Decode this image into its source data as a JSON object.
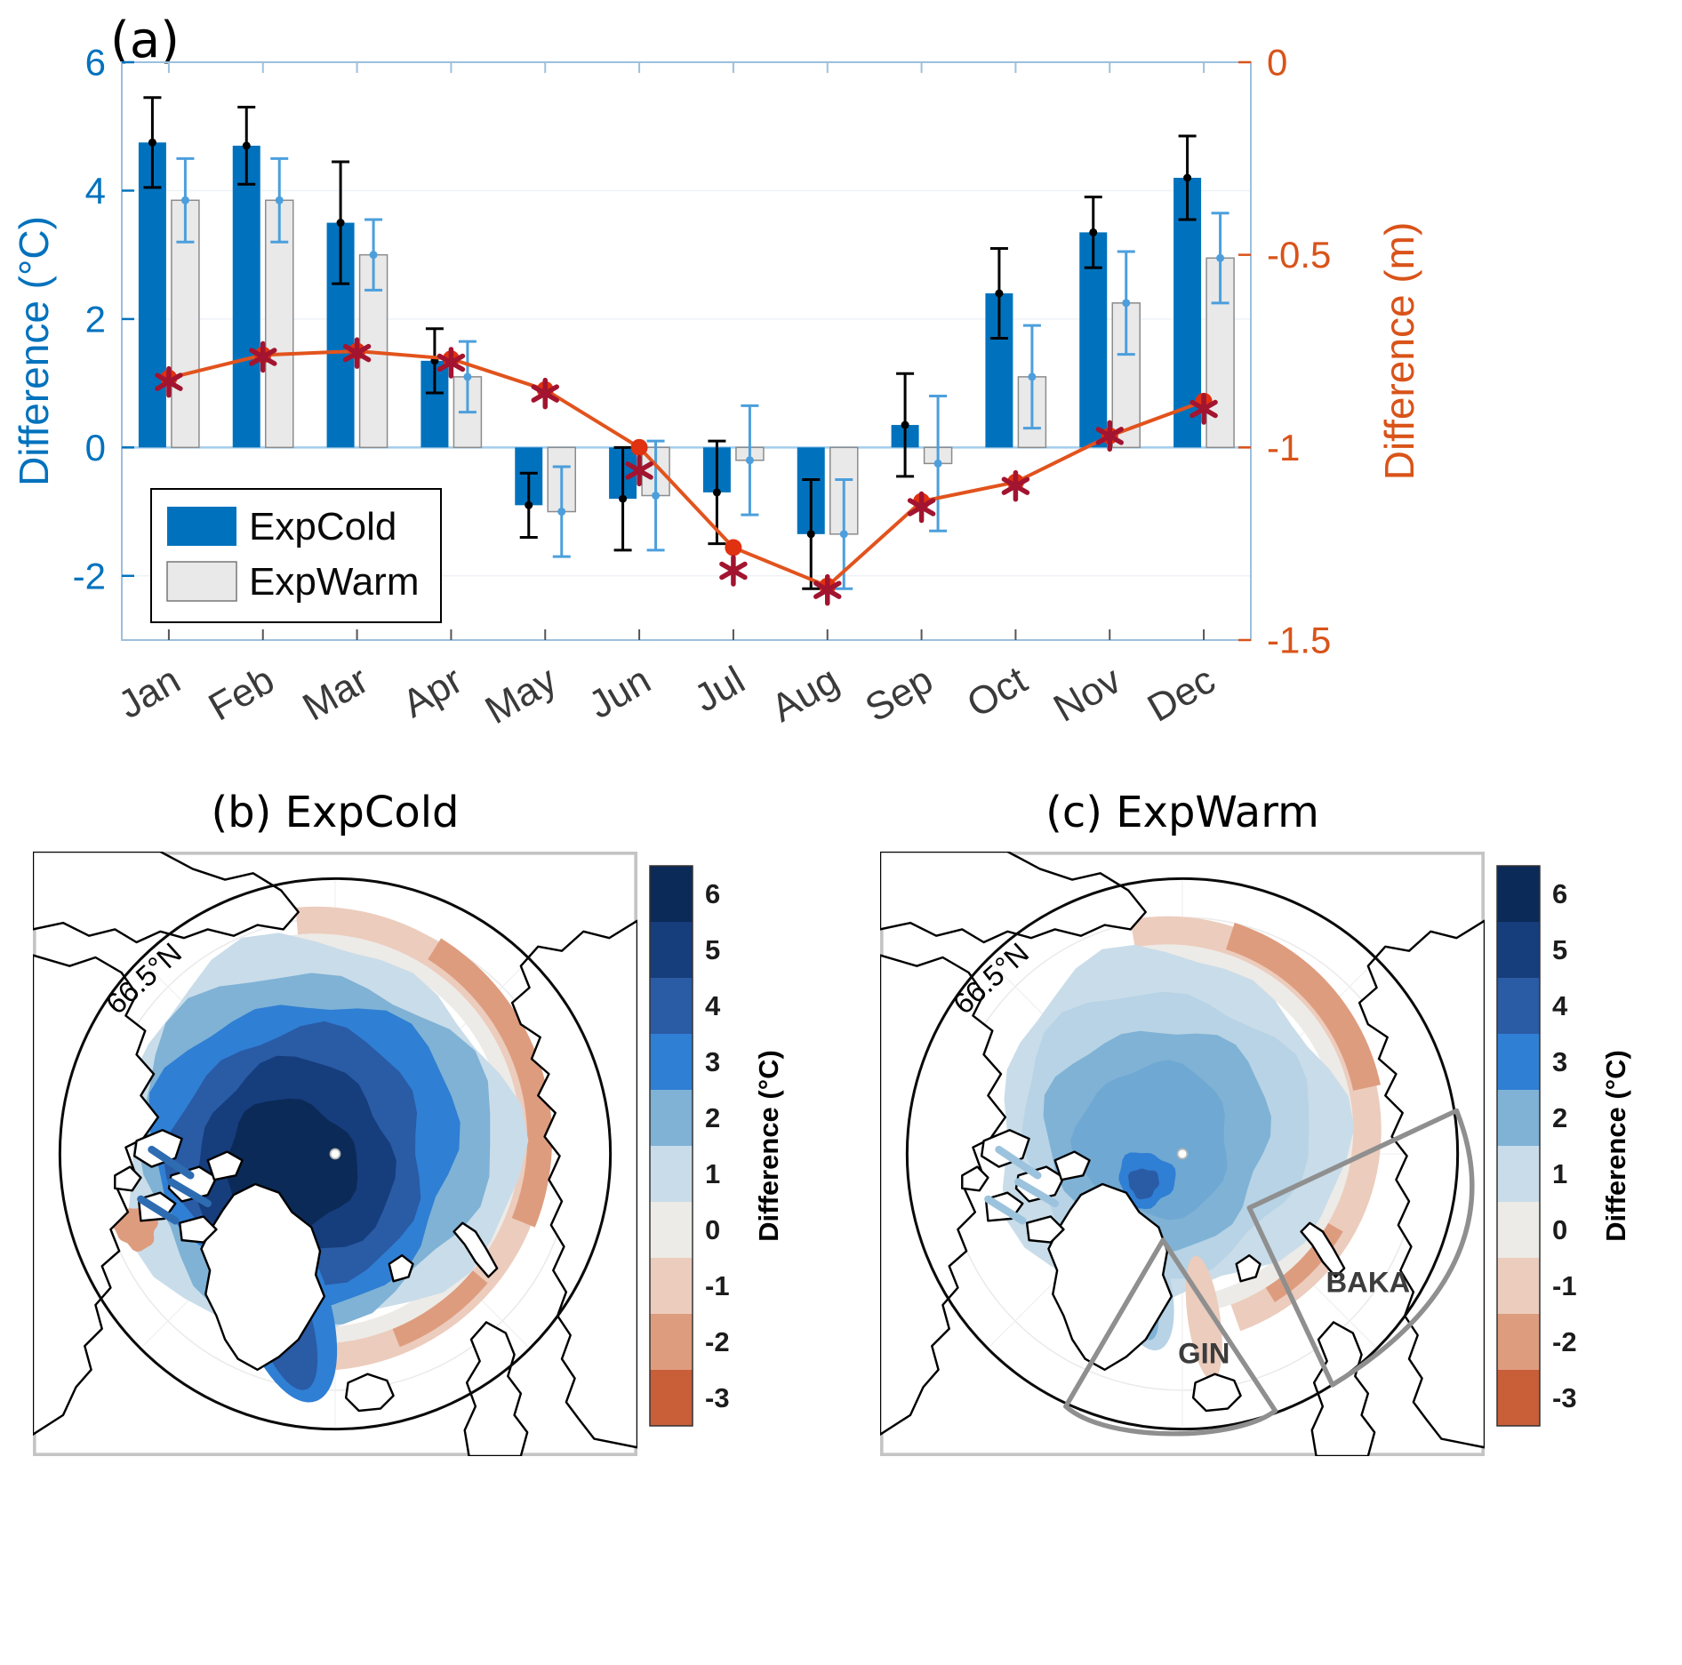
{
  "chart_data": {
    "type": "bar",
    "title": "(a)",
    "categories": [
      "Jan",
      "Feb",
      "Mar",
      "Apr",
      "May",
      "Jun",
      "Jul",
      "Aug",
      "Sep",
      "Oct",
      "Nov",
      "Dec"
    ],
    "left_axis": {
      "label": "Difference (°C)",
      "lim": [
        -3,
        6
      ],
      "ticks": [
        6,
        4,
        2,
        0,
        -2
      ],
      "color": "#0072BD"
    },
    "right_axis": {
      "label": "Difference (m)",
      "lim": [
        -1.5,
        0
      ],
      "ticks": [
        0,
        -0.5,
        -1,
        -1.5
      ],
      "color": "#D95319"
    },
    "grid": "off",
    "legend_position": "lower-left",
    "series": [
      {
        "name": "ExpCold",
        "type": "bar",
        "axis": "left",
        "color": "#0072BD",
        "error_color": "#000000",
        "values": [
          4.75,
          4.7,
          3.5,
          1.35,
          -0.9,
          -0.8,
          -0.7,
          -1.35,
          0.35,
          2.4,
          3.35,
          4.2
        ],
        "errors": [
          0.7,
          0.6,
          0.95,
          0.5,
          0.5,
          0.8,
          0.8,
          0.85,
          0.8,
          0.7,
          0.55,
          0.65
        ]
      },
      {
        "name": "ExpWarm",
        "type": "bar",
        "axis": "left",
        "color": "#E9E9E9",
        "edge_color": "#8C8C8C",
        "error_color": "#4C9FDC",
        "values": [
          3.85,
          3.85,
          3.0,
          1.1,
          -1.0,
          -0.75,
          -0.2,
          -1.35,
          -0.25,
          1.1,
          2.25,
          2.95
        ],
        "errors": [
          0.65,
          0.65,
          0.55,
          0.55,
          0.7,
          0.85,
          0.85,
          0.85,
          1.05,
          0.8,
          0.8,
          0.7
        ]
      },
      {
        "type": "line",
        "axis": "right",
        "color": "#E2531D",
        "marker_color": "#E03111",
        "values": [
          -0.82,
          -0.76,
          -0.75,
          -0.77,
          -0.85,
          -1.0,
          -1.26,
          -1.36,
          -1.14,
          -1.09,
          -0.97,
          -0.88
        ]
      },
      {
        "type": "asterisk",
        "axis": "right",
        "color": "#A2142F",
        "values": [
          -0.83,
          -0.765,
          -0.755,
          -0.78,
          -0.86,
          -1.06,
          -1.32,
          -1.37,
          -1.155,
          -1.1,
          -0.97,
          -0.9
        ]
      }
    ]
  },
  "maps": {
    "latitude_label": "66.5°N",
    "colorbar": {
      "label": "Difference (°C)",
      "ticks": [
        6,
        5,
        4,
        3,
        2,
        1,
        0,
        -1,
        -2,
        -3
      ],
      "colors": [
        "#0B2A57",
        "#163D7C",
        "#2A5BA5",
        "#2F7FD4",
        "#7FB2D5",
        "#C9DCE9",
        "#EDEBE7",
        "#ECCCBD",
        "#DE9C7E",
        "#C85F39"
      ]
    },
    "panels": [
      {
        "id": "b",
        "title": "(b) ExpCold"
      },
      {
        "id": "c",
        "title": "(c) ExpWarm",
        "regions": [
          {
            "name": "BAKA"
          },
          {
            "name": "GIN"
          }
        ]
      }
    ]
  }
}
